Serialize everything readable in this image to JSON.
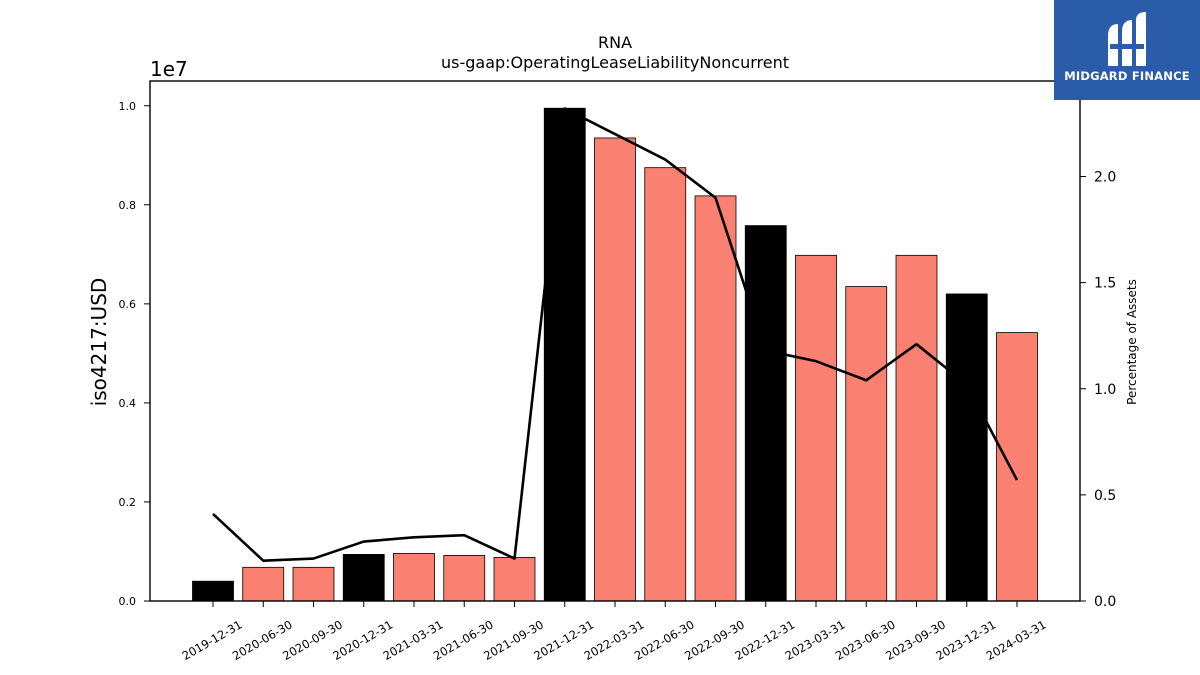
{
  "chart_data": {
    "type": "bar",
    "title": "RNA",
    "subtitle": "us-gaap:OperatingLeaseLiabilityNoncurrent",
    "ylabel": "iso4217:USD",
    "y2label": "Percentage of Assets",
    "y_offset_label": "1e7",
    "ylim": [
      0,
      1.05
    ],
    "y2lim": [
      0,
      2.45
    ],
    "yticks": [
      "0.0",
      "0.2",
      "0.4",
      "0.6",
      "0.8",
      "1.0"
    ],
    "y2ticks": [
      "0.0",
      "0.5",
      "1.0",
      "1.5",
      "2.0"
    ],
    "categories": [
      "2019-12-31",
      "2020-06-30",
      "2020-09-30",
      "2020-12-31",
      "2021-03-31",
      "2021-06-30",
      "2021-09-30",
      "2021-12-31",
      "2022-03-31",
      "2022-06-30",
      "2022-09-30",
      "2022-12-31",
      "2023-03-31",
      "2023-06-30",
      "2023-09-30",
      "2023-12-31",
      "2024-03-31"
    ],
    "series": [
      {
        "values": [
          0.04,
          0.068,
          0.068,
          0.094,
          0.096,
          0.092,
          0.088,
          0.995,
          0.935,
          0.875,
          0.818,
          0.758,
          0.698,
          0.635,
          0.698,
          0.62,
          0.542
        ],
        "colors": [
          "#000000",
          "#fa8072",
          "#fa8072",
          "#000000",
          "#fa8072",
          "#fa8072",
          "#fa8072",
          "#000000",
          "#fa8072",
          "#fa8072",
          "#fa8072",
          "#000000",
          "#fa8072",
          "#fa8072",
          "#fa8072",
          "#000000",
          "#fa8072"
        ]
      },
      {
        "type": "line",
        "axis": "right",
        "color": "#000000",
        "values": [
          0.41,
          0.19,
          0.2,
          0.28,
          0.3,
          0.31,
          0.2,
          2.32,
          2.2,
          2.08,
          1.9,
          1.18,
          1.13,
          1.04,
          1.21,
          1.02,
          0.57
        ]
      }
    ]
  },
  "logo": {
    "text": "MIDGARD FINANCE",
    "color": "#2a5caa"
  }
}
